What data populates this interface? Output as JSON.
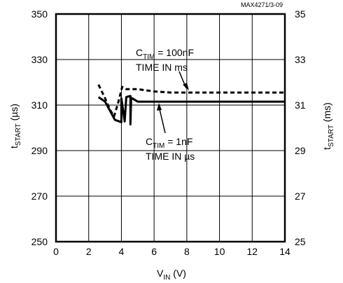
{
  "chart_data": {
    "type": "line",
    "code": "MAX4271/3-09",
    "xlabel": {
      "main": "V",
      "sub": "IN",
      "suffix": " (V)"
    },
    "ylabel_left": {
      "main": "t",
      "sub": "START",
      "suffix": " (µs)"
    },
    "ylabel_right": {
      "main": "t",
      "sub": "START",
      "suffix": " (ms)"
    },
    "xlim": [
      0,
      14
    ],
    "ylim": [
      250,
      350
    ],
    "ylim_right": [
      25,
      35
    ],
    "grid": true,
    "x_ticks": [
      "0",
      "2",
      "4",
      "6",
      "8",
      "10",
      "12",
      "14"
    ],
    "y_ticks_left": [
      "250",
      "270",
      "290",
      "310",
      "330",
      "350"
    ],
    "y_ticks_right": [
      "25",
      "27",
      "29",
      "31",
      "33",
      "35"
    ],
    "annotations": [
      {
        "c_main": "C",
        "c_sub": "TIM",
        "value": " = 100nF",
        "line2": "TIME IN ms"
      },
      {
        "c_main": "C",
        "c_sub": "TIM",
        "value": " = 1nF",
        "line2": "TIME IN µs"
      }
    ],
    "series": [
      {
        "style": "solid",
        "axis": "left",
        "points": [
          [
            2.6,
            313.5
          ],
          [
            3.0,
            311.5
          ],
          [
            3.6,
            303.5
          ],
          [
            4.0,
            302.5
          ],
          [
            4.0,
            313
          ],
          [
            4.2,
            302.8
          ],
          [
            4.3,
            313.5
          ],
          [
            4.55,
            314
          ],
          [
            4.55,
            301.5
          ],
          [
            4.6,
            313.2
          ],
          [
            5.0,
            311.5
          ],
          [
            14.0,
            311.5
          ]
        ]
      },
      {
        "style": "dashed",
        "axis": "right",
        "points": [
          [
            2.6,
            31.9
          ],
          [
            3.0,
            31.3
          ],
          [
            3.3,
            30.8
          ],
          [
            3.55,
            30.5
          ],
          [
            3.8,
            31.1
          ],
          [
            4.05,
            31.8
          ],
          [
            4.3,
            31.7
          ],
          [
            5.0,
            31.7
          ],
          [
            6.0,
            31.6
          ],
          [
            7.0,
            31.55
          ],
          [
            14.0,
            31.55
          ]
        ]
      }
    ]
  }
}
